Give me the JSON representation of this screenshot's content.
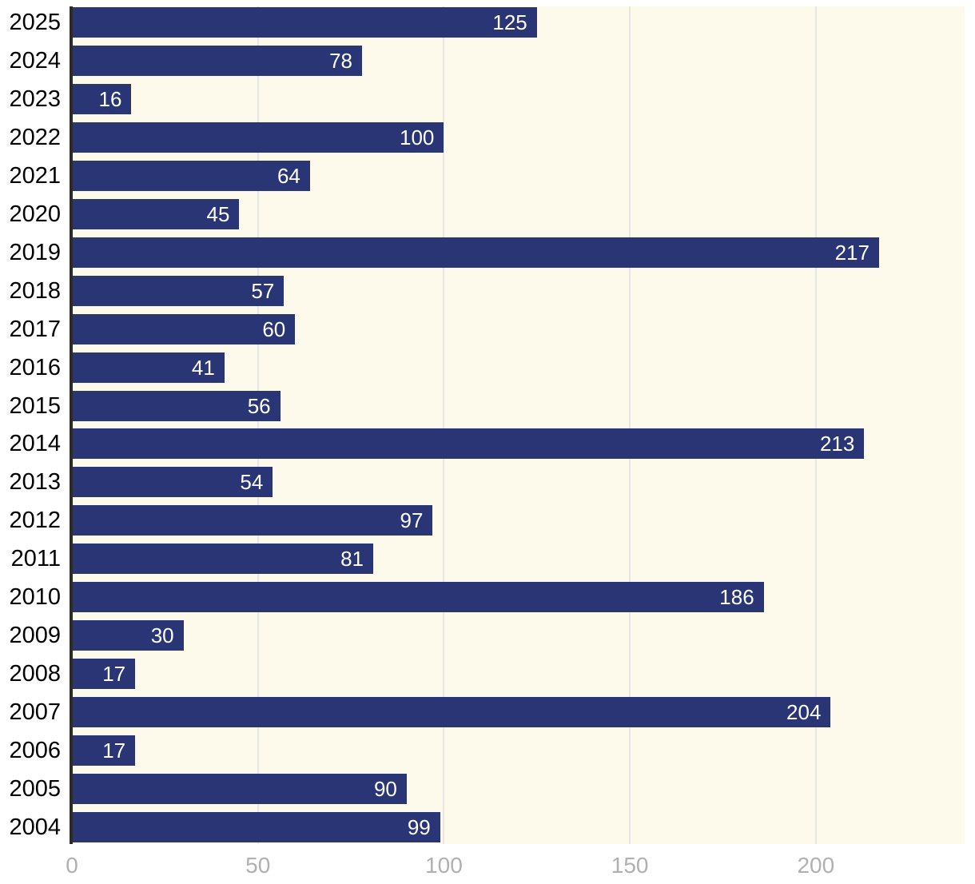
{
  "chart_data": {
    "type": "bar",
    "orientation": "horizontal",
    "title": "",
    "xlabel": "",
    "ylabel": "",
    "categories": [
      "2025",
      "2024",
      "2023",
      "2022",
      "2021",
      "2020",
      "2019",
      "2018",
      "2017",
      "2016",
      "2015",
      "2014",
      "2013",
      "2012",
      "2011",
      "2010",
      "2009",
      "2008",
      "2007",
      "2006",
      "2005",
      "2004"
    ],
    "values": [
      125,
      78,
      16,
      100,
      64,
      45,
      217,
      57,
      60,
      41,
      56,
      213,
      54,
      97,
      81,
      186,
      30,
      17,
      204,
      17,
      90,
      99
    ],
    "x_ticks": [
      0,
      50,
      100,
      150,
      200
    ],
    "xlim": [
      0,
      240
    ],
    "grid": "vertical-gridlines-on",
    "legend": "none",
    "value_labels": "inside-bar-right",
    "colors": {
      "bar": "#293574",
      "plot_background": "#fdfaec",
      "page_background": "#ffffff",
      "gridline": "#e7e7e5",
      "axis_line": "#2b2b2b",
      "category_label": "#000000",
      "tick_label": "#b0b0b0",
      "value_label": "#ffffff"
    }
  }
}
